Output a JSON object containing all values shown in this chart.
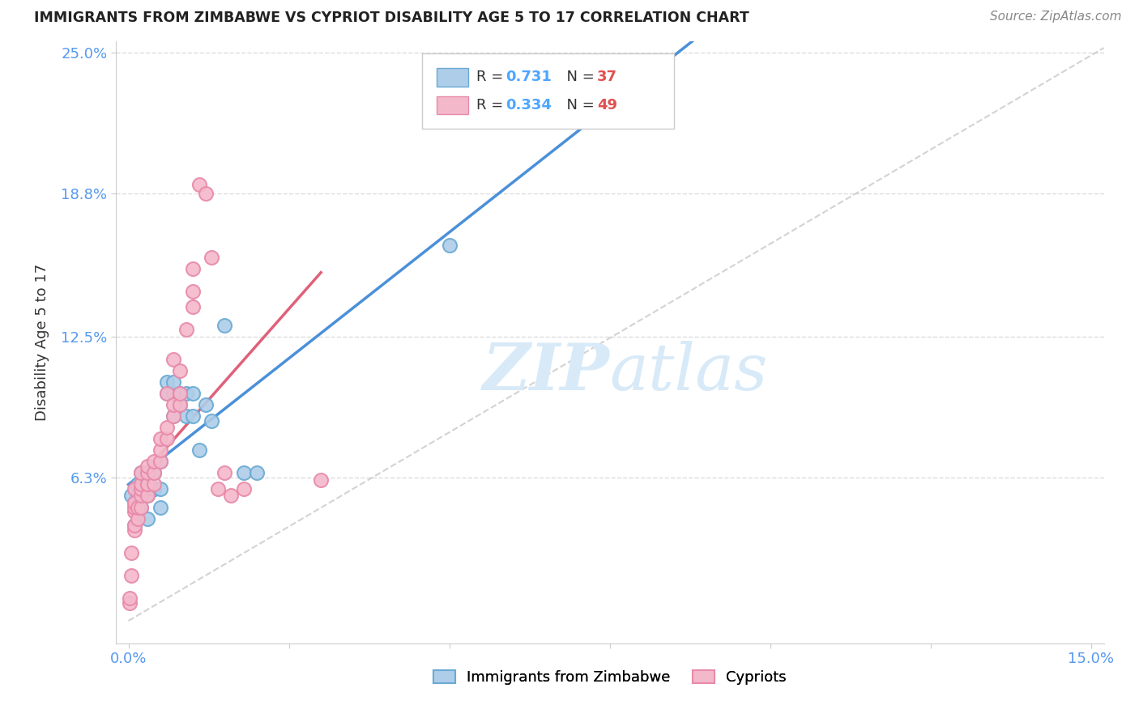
{
  "title": "IMMIGRANTS FROM ZIMBABWE VS CYPRIOT DISABILITY AGE 5 TO 17 CORRELATION CHART",
  "source": "Source: ZipAtlas.com",
  "ylabel": "Disability Age 5 to 17",
  "xlim": [
    -0.002,
    0.152
  ],
  "ylim": [
    -0.01,
    0.255
  ],
  "xticks": [
    0.0,
    0.025,
    0.05,
    0.075,
    0.1,
    0.125,
    0.15
  ],
  "xticklabels": [
    "0.0%",
    "",
    "",
    "",
    "",
    "",
    "15.0%"
  ],
  "ytick_positions": [
    0.063,
    0.125,
    0.188,
    0.25
  ],
  "ytick_labels": [
    "6.3%",
    "12.5%",
    "18.8%",
    "25.0%"
  ],
  "blue_r": "0.731",
  "blue_n": "37",
  "pink_r": "0.334",
  "pink_n": "49",
  "blue_fill": "#aecde8",
  "blue_edge": "#6aaad4",
  "pink_fill": "#f4b8cb",
  "pink_edge": "#e88aaa",
  "blue_line": "#4a90d9",
  "pink_line": "#e0607a",
  "ref_line": "#c8c8c8",
  "watermark_color": "#d8eaf8",
  "blue_points_x": [
    0.0005,
    0.001,
    0.001,
    0.0015,
    0.0015,
    0.002,
    0.002,
    0.002,
    0.002,
    0.003,
    0.003,
    0.003,
    0.003,
    0.004,
    0.004,
    0.004,
    0.005,
    0.005,
    0.005,
    0.006,
    0.006,
    0.007,
    0.007,
    0.007,
    0.008,
    0.008,
    0.009,
    0.009,
    0.01,
    0.01,
    0.011,
    0.012,
    0.013,
    0.015,
    0.018,
    0.02,
    0.05
  ],
  "blue_points_y": [
    0.055,
    0.042,
    0.052,
    0.055,
    0.06,
    0.05,
    0.055,
    0.06,
    0.065,
    0.055,
    0.06,
    0.065,
    0.045,
    0.058,
    0.058,
    0.065,
    0.058,
    0.07,
    0.05,
    0.1,
    0.105,
    0.09,
    0.1,
    0.105,
    0.095,
    0.1,
    0.09,
    0.1,
    0.09,
    0.1,
    0.075,
    0.095,
    0.088,
    0.13,
    0.065,
    0.065,
    0.165
  ],
  "pink_points_x": [
    0.0002,
    0.0002,
    0.0005,
    0.0005,
    0.001,
    0.001,
    0.001,
    0.001,
    0.001,
    0.001,
    0.0015,
    0.0015,
    0.002,
    0.002,
    0.002,
    0.002,
    0.002,
    0.003,
    0.003,
    0.003,
    0.003,
    0.003,
    0.004,
    0.004,
    0.004,
    0.005,
    0.005,
    0.005,
    0.006,
    0.006,
    0.006,
    0.007,
    0.007,
    0.007,
    0.008,
    0.008,
    0.008,
    0.009,
    0.01,
    0.01,
    0.01,
    0.011,
    0.012,
    0.013,
    0.014,
    0.015,
    0.016,
    0.018,
    0.03
  ],
  "pink_points_y": [
    0.008,
    0.01,
    0.03,
    0.02,
    0.04,
    0.042,
    0.048,
    0.05,
    0.052,
    0.058,
    0.045,
    0.05,
    0.05,
    0.055,
    0.058,
    0.06,
    0.065,
    0.055,
    0.06,
    0.06,
    0.065,
    0.068,
    0.06,
    0.065,
    0.07,
    0.07,
    0.075,
    0.08,
    0.08,
    0.085,
    0.1,
    0.09,
    0.095,
    0.115,
    0.095,
    0.1,
    0.11,
    0.128,
    0.138,
    0.145,
    0.155,
    0.192,
    0.188,
    0.16,
    0.058,
    0.065,
    0.055,
    0.058,
    0.062
  ]
}
